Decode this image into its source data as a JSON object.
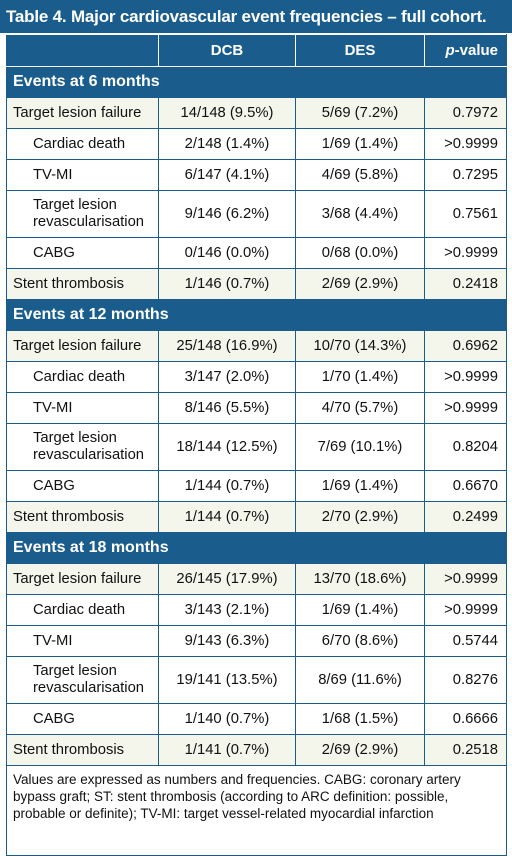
{
  "title": "Table 4. Major cardiovascular event frequencies – full cohort.",
  "columns": {
    "c0": "",
    "c1": "DCB",
    "c2": "DES",
    "c3_italic": "p",
    "c3_rest": "-value"
  },
  "sections": [
    {
      "heading": "Events at 6 months",
      "rows": [
        {
          "label": "Target lesion failure",
          "dcb": "14/148 (9.5%)",
          "des": "5/69 (7.2%)",
          "p": "0.7972"
        },
        {
          "label": "Cardiac death",
          "dcb": "2/148 (1.4%)",
          "des": "1/69 (1.4%)",
          "p": ">0.9999"
        },
        {
          "label": "TV-MI",
          "dcb": "6/147 (4.1%)",
          "des": "4/69 (5.8%)",
          "p": "0.7295"
        },
        {
          "label": "Target lesion revascularisation",
          "dcb": "9/146 (6.2%)",
          "des": "3/68 (4.4%)",
          "p": "0.7561"
        },
        {
          "label": "CABG",
          "dcb": "0/146 (0.0%)",
          "des": "0/68 (0.0%)",
          "p": ">0.9999"
        },
        {
          "label": "Stent thrombosis",
          "dcb": "1/146 (0.7%)",
          "des": "2/69 (2.9%)",
          "p": "0.2418"
        }
      ]
    },
    {
      "heading": "Events at 12 months",
      "rows": [
        {
          "label": "Target lesion failure",
          "dcb": "25/148 (16.9%)",
          "des": "10/70 (14.3%)",
          "p": "0.6962"
        },
        {
          "label": "Cardiac death",
          "dcb": "3/147 (2.0%)",
          "des": "1/70 (1.4%)",
          "p": ">0.9999"
        },
        {
          "label": "TV-MI",
          "dcb": "8/146 (5.5%)",
          "des": "4/70 (5.7%)",
          "p": ">0.9999"
        },
        {
          "label": "Target lesion revascularisation",
          "dcb": "18/144 (12.5%)",
          "des": "7/69 (10.1%)",
          "p": "0.8204"
        },
        {
          "label": "CABG",
          "dcb": "1/144 (0.7%)",
          "des": "1/69 (1.4%)",
          "p": "0.6670"
        },
        {
          "label": "Stent thrombosis",
          "dcb": "1/144 (0.7%)",
          "des": "2/70 (2.9%)",
          "p": "0.2499"
        }
      ]
    },
    {
      "heading": "Events at 18 months",
      "rows": [
        {
          "label": "Target lesion failure",
          "dcb": "26/145 (17.9%)",
          "des": "13/70 (18.6%)",
          "p": ">0.9999"
        },
        {
          "label": "Cardiac death",
          "dcb": "3/143 (2.1%)",
          "des": "1/69 (1.4%)",
          "p": ">0.9999"
        },
        {
          "label": "TV-MI",
          "dcb": "9/143 (6.3%)",
          "des": "6/70 (8.6%)",
          "p": "0.5744"
        },
        {
          "label": "Target lesion revascularisation",
          "dcb": "19/141 (13.5%)",
          "des": "8/69 (11.6%)",
          "p": "0.8276"
        },
        {
          "label": "CABG",
          "dcb": "1/140 (0.7%)",
          "des": "1/68 (1.5%)",
          "p": "0.6666"
        },
        {
          "label": "Stent thrombosis",
          "dcb": "1/141 (0.7%)",
          "des": "2/69 (2.9%)",
          "p": "0.2518"
        }
      ]
    }
  ],
  "footnote": "Values are expressed as numbers and frequencies. CABG: coronary artery bypass graft; ST: stent thrombosis (according to ARC definition: possible, probable or definite); TV-MI: target vessel-related myocardial infarction",
  "colors": {
    "header_blue": "#1a5d8c",
    "row_shade": "#f4f5eb"
  }
}
